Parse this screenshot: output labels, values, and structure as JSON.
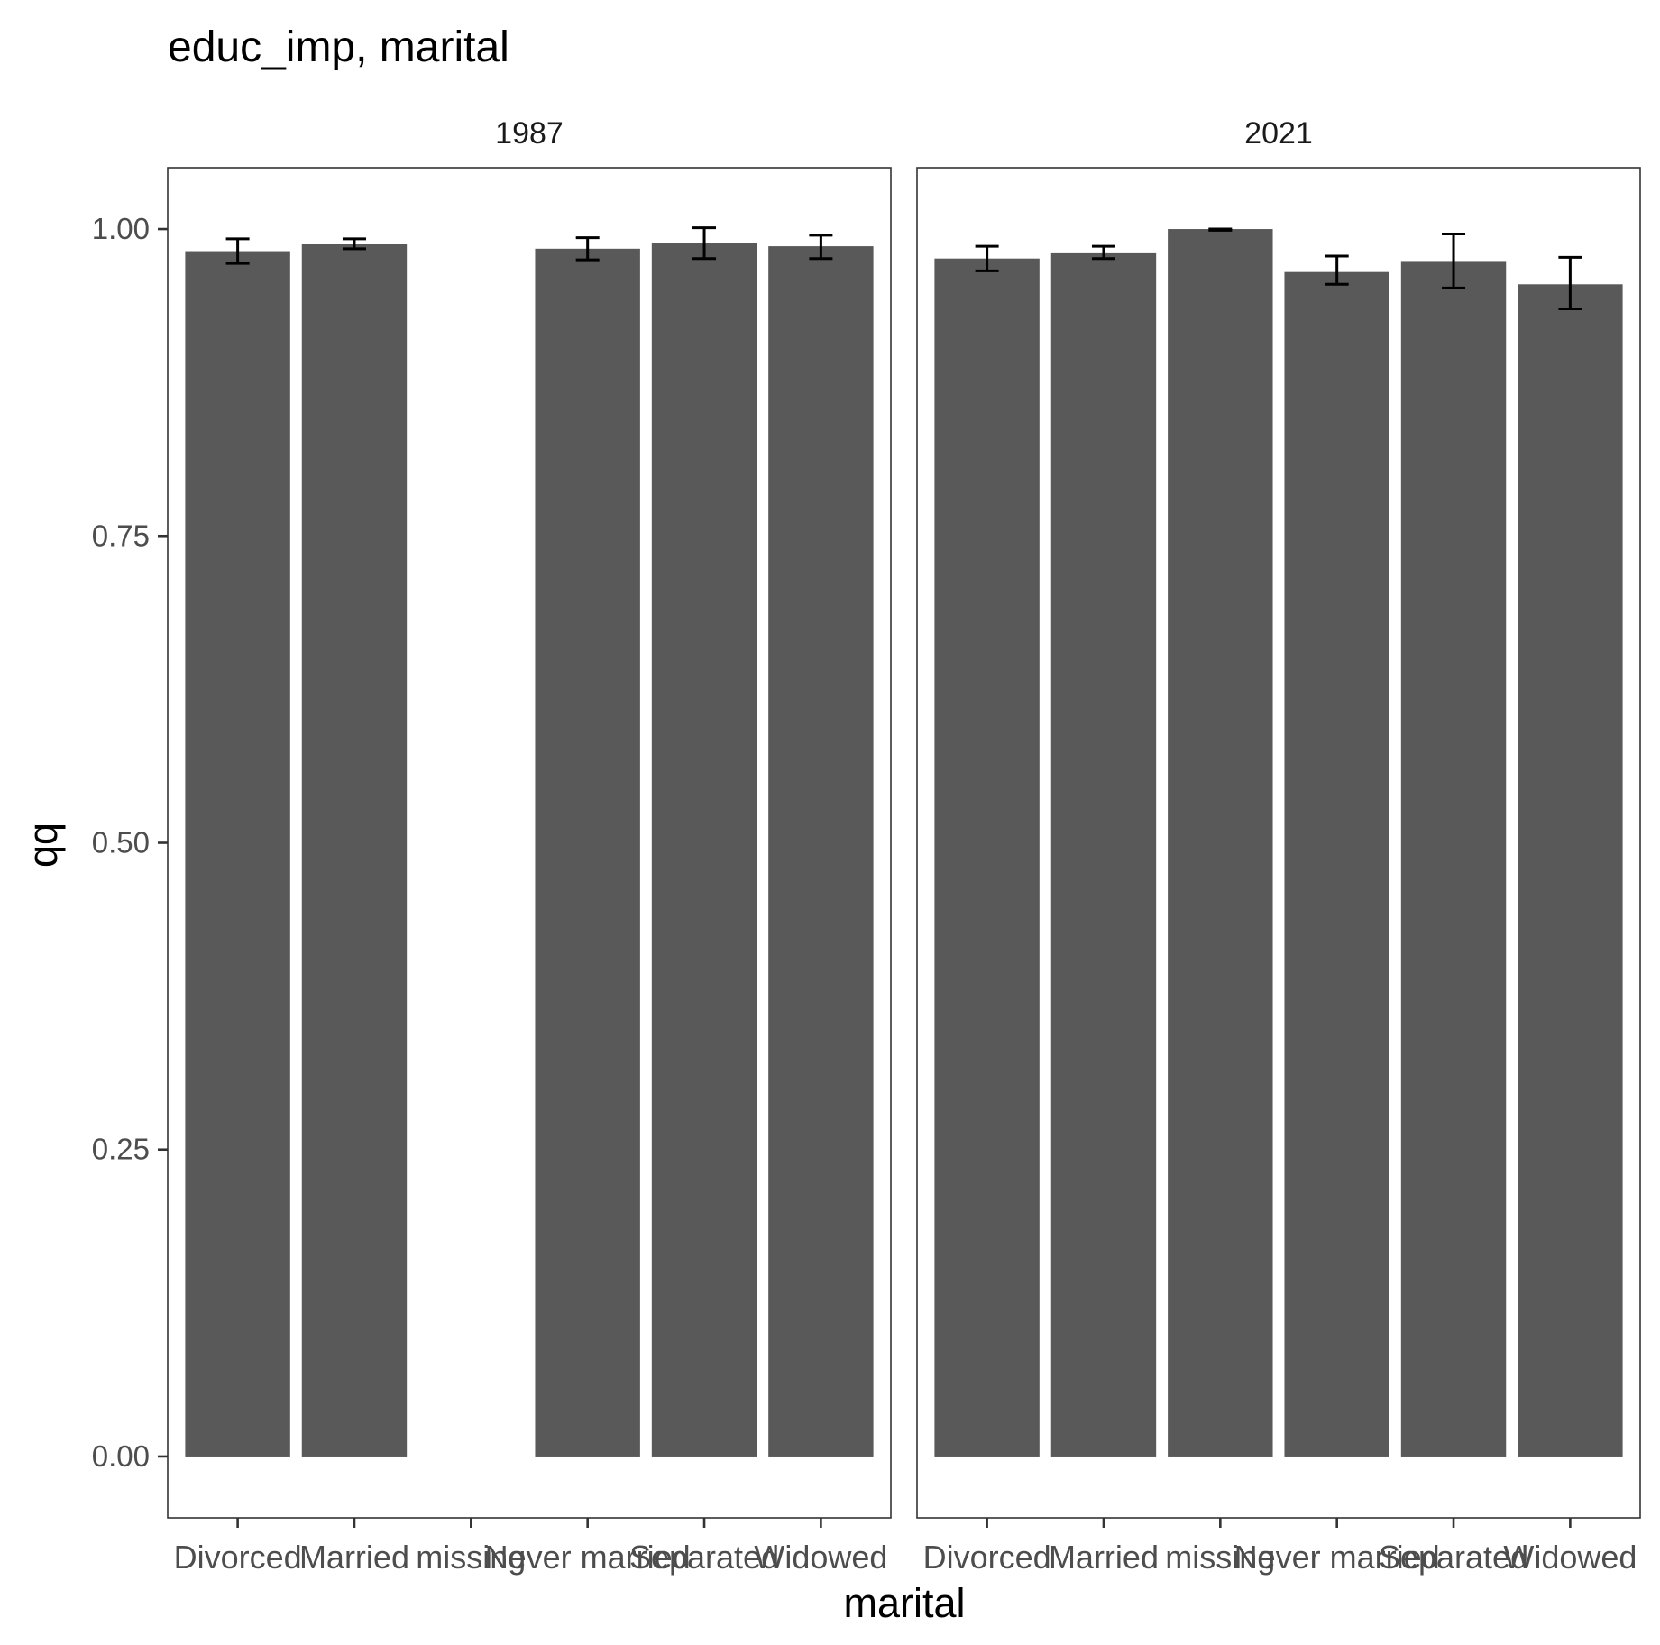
{
  "chart_data": {
    "type": "bar",
    "title": "educ_imp, marital",
    "xlabel": "marital",
    "ylabel": "qq",
    "ylim": [
      -0.05,
      1.05
    ],
    "yticks": [
      0.0,
      0.25,
      0.5,
      0.75,
      1.0
    ],
    "ytick_labels": [
      "0.00",
      "0.25",
      "0.50",
      "0.75",
      "1.00"
    ],
    "categories": [
      "Divorced",
      "Married",
      "missing",
      "Never married",
      "Separated",
      "Widowed"
    ],
    "bar_color": "#595959",
    "grid": false,
    "panels": [
      {
        "label": "1987",
        "values": [
          0.982,
          0.988,
          null,
          0.984,
          0.989,
          0.986
        ],
        "error_low": [
          0.972,
          0.984,
          null,
          0.975,
          0.976,
          0.976
        ],
        "error_high": [
          0.992,
          0.992,
          null,
          0.993,
          1.001,
          0.995
        ]
      },
      {
        "label": "2021",
        "values": [
          0.976,
          0.981,
          1.0,
          0.965,
          0.974,
          0.955
        ],
        "error_low": [
          0.966,
          0.976,
          0.999,
          0.955,
          0.952,
          0.935
        ],
        "error_high": [
          0.986,
          0.986,
          1.0,
          0.978,
          0.996,
          0.977
        ]
      }
    ]
  }
}
